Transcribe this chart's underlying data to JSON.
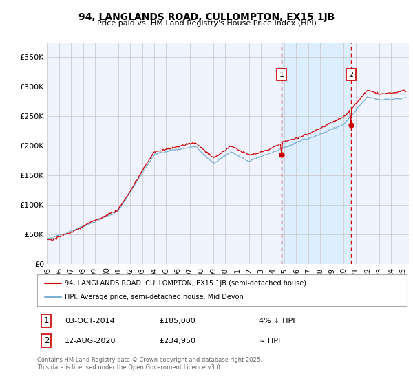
{
  "title": "94, LANGLANDS ROAD, CULLOMPTON, EX15 1JB",
  "subtitle": "Price paid vs. HM Land Registry's House Price Index (HPI)",
  "ylabel_ticks": [
    "£0",
    "£50K",
    "£100K",
    "£150K",
    "£200K",
    "£250K",
    "£300K",
    "£350K"
  ],
  "ytick_vals": [
    0,
    50000,
    100000,
    150000,
    200000,
    250000,
    300000,
    350000
  ],
  "ylim": [
    0,
    375000
  ],
  "xlim_start": 1995.0,
  "xlim_end": 2025.5,
  "hpi_color": "#7BAFD4",
  "price_color": "#cc0000",
  "background_color": "#f0f4ff",
  "shade_color": "#ddeeff",
  "event1_x": 2014.75,
  "event2_x": 2020.6,
  "event1_label": "1",
  "event2_label": "2",
  "event1_date": "03-OCT-2014",
  "event1_price": "£185,000",
  "event1_note": "4% ↓ HPI",
  "event2_date": "12-AUG-2020",
  "event2_price": "£234,950",
  "event2_note": "≈ HPI",
  "legend_line1": "94, LANGLANDS ROAD, CULLOMPTON, EX15 1JB (semi-detached house)",
  "legend_line2": "HPI: Average price, semi-detached house, Mid Devon",
  "footer": "Contains HM Land Registry data © Crown copyright and database right 2025.\nThis data is licensed under the Open Government Licence v3.0."
}
